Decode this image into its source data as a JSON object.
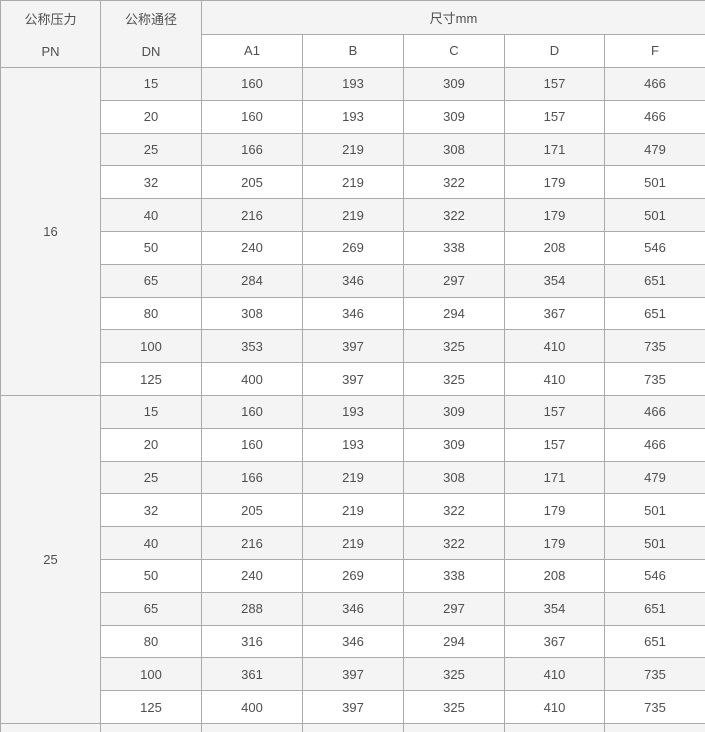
{
  "table": {
    "header": {
      "pressure": {
        "line1": "公称压力",
        "line2": "PN"
      },
      "diameter": {
        "line1": "公称通径",
        "line2": "DN"
      },
      "size_group": "尺寸mm",
      "size_columns": [
        "A1",
        "B",
        "C",
        "D",
        "F"
      ]
    },
    "sections": [
      {
        "pn": "16",
        "rows": [
          {
            "dn": "15",
            "a1": "160",
            "b": "193",
            "c": "309",
            "d": "157",
            "f": "466"
          },
          {
            "dn": "20",
            "a1": "160",
            "b": "193",
            "c": "309",
            "d": "157",
            "f": "466"
          },
          {
            "dn": "25",
            "a1": "166",
            "b": "219",
            "c": "308",
            "d": "171",
            "f": "479"
          },
          {
            "dn": "32",
            "a1": "205",
            "b": "219",
            "c": "322",
            "d": "179",
            "f": "501"
          },
          {
            "dn": "40",
            "a1": "216",
            "b": "219",
            "c": "322",
            "d": "179",
            "f": "501"
          },
          {
            "dn": "50",
            "a1": "240",
            "b": "269",
            "c": "338",
            "d": "208",
            "f": "546"
          },
          {
            "dn": "65",
            "a1": "284",
            "b": "346",
            "c": "297",
            "d": "354",
            "f": "651"
          },
          {
            "dn": "80",
            "a1": "308",
            "b": "346",
            "c": "294",
            "d": "367",
            "f": "651"
          },
          {
            "dn": "100",
            "a1": "353",
            "b": "397",
            "c": "325",
            "d": "410",
            "f": "735"
          },
          {
            "dn": "125",
            "a1": "400",
            "b": "397",
            "c": "325",
            "d": "410",
            "f": "735"
          }
        ]
      },
      {
        "pn": "25",
        "rows": [
          {
            "dn": "15",
            "a1": "160",
            "b": "193",
            "c": "309",
            "d": "157",
            "f": "466"
          },
          {
            "dn": "20",
            "a1": "160",
            "b": "193",
            "c": "309",
            "d": "157",
            "f": "466"
          },
          {
            "dn": "25",
            "a1": "166",
            "b": "219",
            "c": "308",
            "d": "171",
            "f": "479"
          },
          {
            "dn": "32",
            "a1": "205",
            "b": "219",
            "c": "322",
            "d": "179",
            "f": "501"
          },
          {
            "dn": "40",
            "a1": "216",
            "b": "219",
            "c": "322",
            "d": "179",
            "f": "501"
          },
          {
            "dn": "50",
            "a1": "240",
            "b": "269",
            "c": "338",
            "d": "208",
            "f": "546"
          },
          {
            "dn": "65",
            "a1": "288",
            "b": "346",
            "c": "297",
            "d": "354",
            "f": "651"
          },
          {
            "dn": "80",
            "a1": "316",
            "b": "346",
            "c": "294",
            "d": "367",
            "f": "651"
          },
          {
            "dn": "100",
            "a1": "361",
            "b": "397",
            "c": "325",
            "d": "410",
            "f": "735"
          },
          {
            "dn": "125",
            "a1": "400",
            "b": "397",
            "c": "325",
            "d": "410",
            "f": "735"
          }
        ]
      }
    ],
    "partial_row_visible": true
  },
  "colors": {
    "stripe": "#f4f4f4",
    "border": "#aaaaaa",
    "text": "#4f4f4f",
    "background": "#ffffff"
  }
}
